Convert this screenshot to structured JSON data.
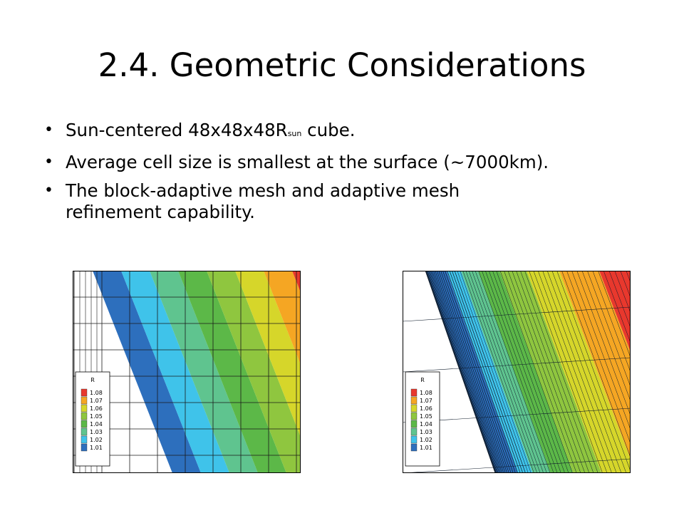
{
  "slide": {
    "title": "2.4. Geometric Considerations",
    "bullets": [
      {
        "text": "Sun-centered 48x48x48R",
        "sub": "sun",
        "after": " cube."
      },
      {
        "text": "Average cell size is smallest at the surface (~7000km)."
      },
      {
        "text": "The block-adaptive mesh and adaptive mesh",
        "line2": "refinement capability."
      }
    ]
  },
  "figures": {
    "legend": {
      "title": "R",
      "levels": [
        "1.08",
        "1.07",
        "1.06",
        "1.05",
        "1.04",
        "1.03",
        "1.02",
        "1.01"
      ],
      "colors": [
        "#e8382d",
        "#f5a623",
        "#d6d62a",
        "#8fc63f",
        "#5cb848",
        "#5fc48f",
        "#3fc3ea",
        "#2d6fbd"
      ]
    },
    "left_caption": "",
    "right_caption": ""
  }
}
